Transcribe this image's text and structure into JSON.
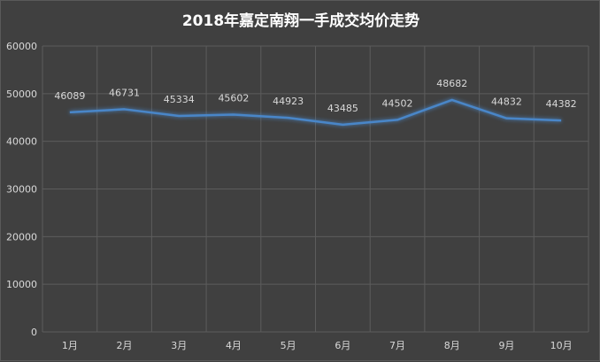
{
  "chart_data": {
    "type": "line",
    "title": "2018年嘉定南翔一手成交均价走势",
    "categories": [
      "1月",
      "2月",
      "3月",
      "4月",
      "5月",
      "6月",
      "7月",
      "8月",
      "9月",
      "10月"
    ],
    "series": [
      {
        "values": [
          46089,
          46731,
          45334,
          45602,
          44923,
          43485,
          44502,
          48682,
          44832,
          44382
        ]
      }
    ],
    "ylim": [
      0,
      60000
    ],
    "yticks": [
      0,
      10000,
      20000,
      30000,
      40000,
      50000,
      60000
    ],
    "grid": true,
    "line_color": "#4a86c8",
    "background": "#404040"
  }
}
